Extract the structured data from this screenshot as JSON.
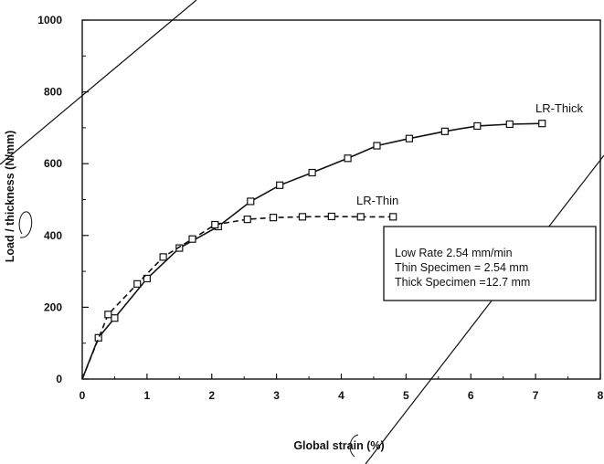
{
  "chart_data": {
    "type": "line",
    "title": "",
    "xlabel": "Global strain (%)",
    "ylabel": "Load / thickness (N/mm)",
    "xlim": [
      0,
      8
    ],
    "ylim": [
      0,
      1000
    ],
    "xticks": [
      "0",
      "1",
      "2",
      "3",
      "4",
      "5",
      "6",
      "7",
      "8"
    ],
    "yticks": [
      "0",
      "200",
      "400",
      "600",
      "800",
      "1000"
    ],
    "grid": false,
    "series": [
      {
        "name": "LR-Thick",
        "style": "solid",
        "marker": "square",
        "x": [
          0.25,
          0.5,
          1.0,
          1.5,
          2.1,
          2.6,
          3.05,
          3.55,
          4.1,
          4.55,
          5.05,
          5.6,
          6.1,
          6.6,
          7.1
        ],
        "y": [
          115,
          170,
          280,
          365,
          425,
          495,
          540,
          575,
          615,
          650,
          670,
          690,
          705,
          710,
          712
        ]
      },
      {
        "name": "LR-Thin",
        "style": "dashed",
        "marker": "square",
        "x": [
          0.4,
          0.85,
          1.25,
          1.7,
          2.05,
          2.55,
          2.95,
          3.4,
          3.85,
          4.3,
          4.8
        ],
        "y": [
          180,
          265,
          340,
          390,
          430,
          445,
          450,
          452,
          453,
          452,
          452
        ]
      }
    ],
    "annotation_box": {
      "lines": [
        "Low Rate 2.54 mm/min",
        "Thin Specimen = 2.54 mm",
        "Thick Specimen =12.7 mm"
      ]
    }
  }
}
